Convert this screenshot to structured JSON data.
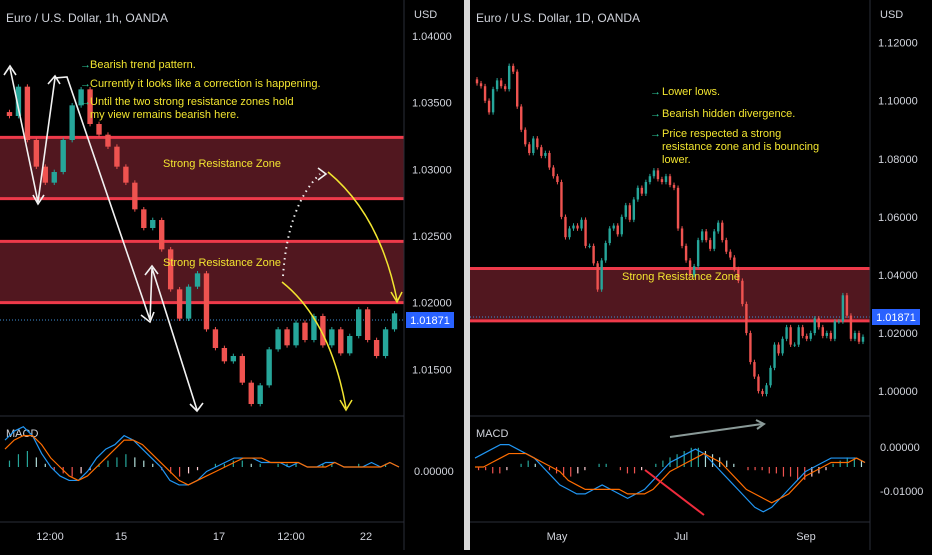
{
  "chart_data": [
    {
      "type": "line",
      "title": "Euro / U.S. Dollar, 1h, OANDA",
      "currency": "USD",
      "price_ticks": [
        "1.04000",
        "1.03500",
        "1.03000",
        "1.02500",
        "1.02000",
        "1.01500"
      ],
      "last_price": "1.01871",
      "time_ticks": [
        "12:00",
        "15",
        "17",
        "12:00",
        "22"
      ],
      "zones": [
        {
          "label": "Strong Resistance Zone",
          "low": 1.0278,
          "high": 1.0324
        },
        {
          "label": "Strong Resistance Zone",
          "low": 1.02,
          "high": 1.0246
        }
      ],
      "notes": [
        "Bearish trend pattern.",
        "Currently it looks like a correction is happening.",
        "Until the two strong resistance zones hold my view remains bearish here."
      ],
      "ylim": [
        1.0118,
        1.0412
      ],
      "series": [
        {
          "values": [
            1.034,
            1.0362,
            1.0322,
            1.0302,
            1.029,
            1.0298,
            1.0322,
            1.0348,
            1.036,
            1.0334,
            1.0326,
            1.0317,
            1.0302,
            1.029,
            1.027,
            1.0256,
            1.0262,
            1.024,
            1.021,
            1.0188,
            1.0212,
            1.0222,
            1.018,
            1.0166,
            1.0156,
            1.016,
            1.014,
            1.0124,
            1.0138,
            1.0165,
            1.018,
            1.0168,
            1.0185,
            1.0172,
            1.019,
            1.0168,
            1.018,
            1.0162,
            1.0175,
            1.0195,
            1.0172,
            1.016,
            1.018,
            1.0192
          ]
        }
      ],
      "macd": {
        "label": "MACD",
        "ticks": [
          "0.00000"
        ],
        "histogram": [
          2,
          4,
          5,
          3,
          1,
          -1,
          -2,
          -3,
          -2,
          -1,
          1,
          2,
          3,
          4,
          3,
          2,
          1,
          -1,
          -2,
          -3,
          -2,
          -1,
          0,
          1,
          1,
          2,
          2,
          1,
          1,
          0,
          1,
          1,
          1,
          0,
          0,
          1,
          1,
          0,
          0,
          1,
          0,
          0,
          1,
          0
        ],
        "line": [
          6,
          8,
          9,
          7,
          3,
          0,
          -2,
          -3,
          -3,
          -1,
          2,
          4,
          5,
          7,
          6,
          4,
          2,
          0,
          -3,
          -4,
          -4,
          -3,
          -1,
          0,
          1,
          2,
          2,
          2,
          1,
          1,
          1,
          0,
          1,
          0,
          0,
          1,
          1,
          0,
          0,
          0,
          1,
          0,
          1,
          0
        ],
        "signal": [
          4,
          6,
          7,
          7,
          5,
          2,
          0,
          -2,
          -3,
          -2,
          0,
          2,
          4,
          6,
          6,
          5,
          3,
          1,
          -1,
          -3,
          -4,
          -3,
          -2,
          -1,
          0,
          1,
          2,
          2,
          2,
          1,
          1,
          1,
          1,
          0,
          0,
          0,
          1,
          0,
          0,
          0,
          0,
          0,
          1,
          0
        ]
      }
    },
    {
      "type": "line",
      "title": "Euro / U.S. Dollar, 1D, OANDA",
      "currency": "USD",
      "price_ticks": [
        "1.12000",
        "1.10000",
        "1.08000",
        "1.06000",
        "1.04000",
        "1.02000",
        "1.00000"
      ],
      "last_price": "1.01871",
      "time_ticks": [
        "May",
        "Jul",
        "Sep"
      ],
      "zones": [
        {
          "label": "Strong Resistance Zone",
          "low": 1.0242,
          "high": 1.0422
        }
      ],
      "notes": [
        "Lower lows.",
        "Bearish hidden divergence.",
        "Price respected a strong resistance zone and is bouncing lower."
      ],
      "ylim": [
        0.9928,
        1.1278
      ],
      "series": [
        {
          "values": [
            1.106,
            1.105,
            1.1,
            1.096,
            1.104,
            1.107,
            1.105,
            1.104,
            1.112,
            1.11,
            1.098,
            1.09,
            1.085,
            1.082,
            1.087,
            1.084,
            1.081,
            1.082,
            1.077,
            1.074,
            1.072,
            1.06,
            1.053,
            1.056,
            1.057,
            1.056,
            1.059,
            1.05,
            1.05,
            1.044,
            1.035,
            1.045,
            1.051,
            1.056,
            1.057,
            1.054,
            1.06,
            1.064,
            1.059,
            1.066,
            1.07,
            1.068,
            1.072,
            1.074,
            1.076,
            1.073,
            1.072,
            1.074,
            1.071,
            1.07,
            1.056,
            1.05,
            1.045,
            1.04,
            1.043,
            1.052,
            1.055,
            1.052,
            1.049,
            1.055,
            1.058,
            1.052,
            1.048,
            1.046,
            1.042,
            1.038,
            1.03,
            1.02,
            1.01,
            1.005,
            1.0,
            0.999,
            1.002,
            1.008,
            1.016,
            1.013,
            1.018,
            1.022,
            1.016,
            1.016,
            1.022,
            1.019,
            1.018,
            1.02,
            1.025,
            1.022,
            1.019,
            1.02,
            1.018,
            1.024,
            1.024,
            1.033,
            1.026,
            1.018,
            1.02,
            1.017,
            1.0187
          ]
        }
      ],
      "macd": {
        "label": "MACD",
        "ticks": [
          "0.00000",
          "-0.01000"
        ],
        "histogram": [
          -1,
          -1,
          -2,
          -2,
          -1,
          0,
          1,
          2,
          1,
          0,
          -1,
          -2,
          -3,
          -3,
          -2,
          -1,
          0,
          1,
          1,
          0,
          -1,
          -2,
          -2,
          -1,
          0,
          1,
          2,
          3,
          4,
          5,
          6,
          6,
          5,
          4,
          3,
          2,
          1,
          0,
          -1,
          -1,
          -1,
          -2,
          -2,
          -3,
          -3,
          -4,
          -4,
          -3,
          -2,
          -1,
          1,
          2,
          3,
          3,
          2
        ],
        "line": [
          2,
          3,
          4,
          5,
          5,
          4,
          3,
          2,
          0,
          -2,
          -4,
          -5,
          -6,
          -6,
          -5,
          -4,
          -5,
          -6,
          -7,
          -6,
          -5,
          -3,
          -1,
          1,
          2,
          3,
          4,
          3,
          1,
          -1,
          -3,
          -5,
          -7,
          -9,
          -10,
          -9,
          -7,
          -5,
          -3,
          -1,
          0,
          1,
          2,
          2,
          2,
          2,
          1
        ],
        "signal": [
          0,
          0,
          1,
          2,
          3,
          3,
          3,
          2,
          1,
          0,
          -1,
          -3,
          -4,
          -5,
          -5,
          -5,
          -5,
          -5,
          -6,
          -6,
          -6,
          -5,
          -3,
          -1,
          0,
          1,
          2,
          3,
          2,
          1,
          -1,
          -3,
          -5,
          -6,
          -7,
          -8,
          -7,
          -6,
          -4,
          -2,
          -1,
          0,
          1,
          1,
          1,
          2,
          1
        ]
      }
    }
  ]
}
